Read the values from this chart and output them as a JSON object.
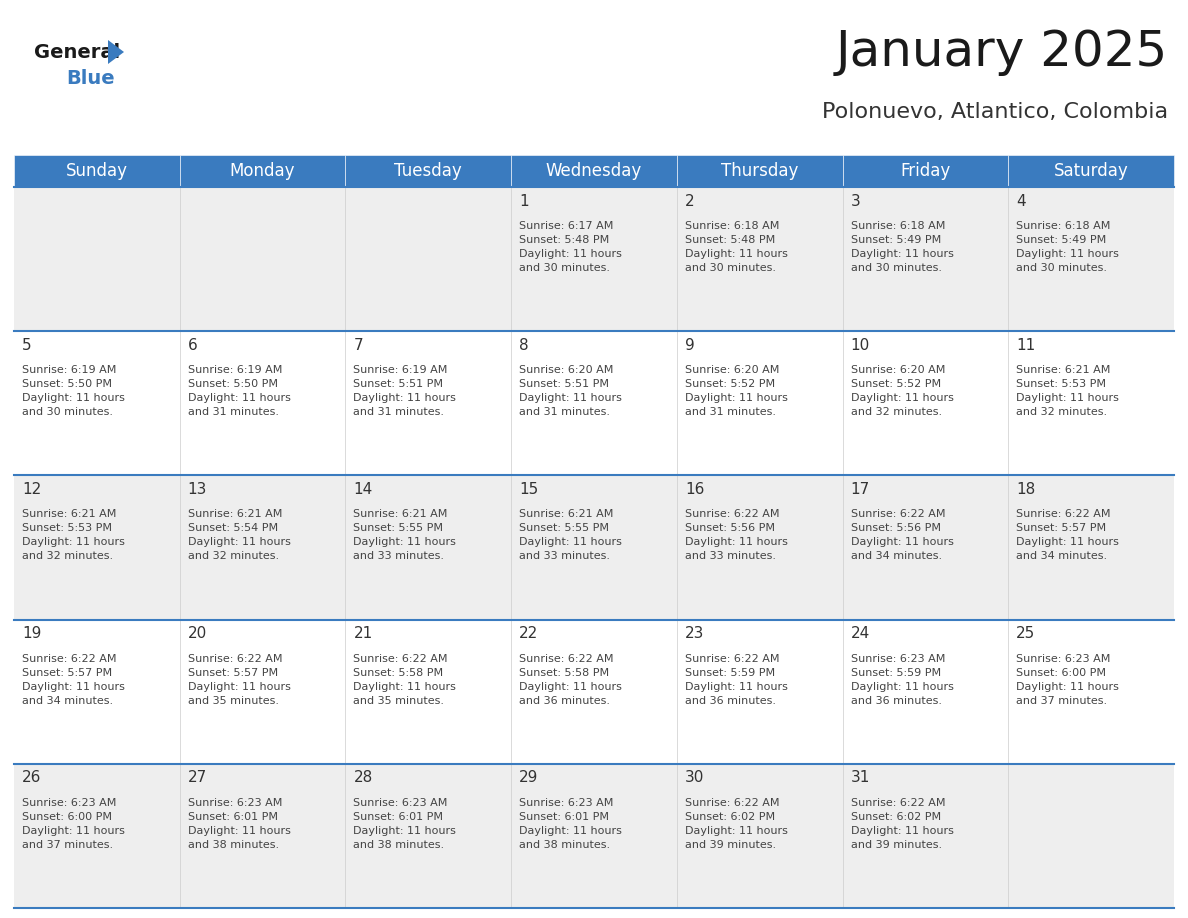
{
  "title": "January 2025",
  "subtitle": "Polonuevo, Atlantico, Colombia",
  "header_color": "#3a7bbf",
  "header_text_color": "#ffffff",
  "cell_bg_even": "#eeeeee",
  "cell_bg_odd": "#ffffff",
  "day_headers": [
    "Sunday",
    "Monday",
    "Tuesday",
    "Wednesday",
    "Thursday",
    "Friday",
    "Saturday"
  ],
  "text_color": "#444444",
  "day_number_color": "#333333",
  "line_color": "#3a7bbf",
  "background_color": "#ffffff",
  "logo_general_color": "#1a1a1a",
  "logo_blue_color": "#3a7bbf",
  "logo_triangle_color": "#3a7bbf",
  "title_fontsize": 36,
  "subtitle_fontsize": 16,
  "header_fontsize": 12,
  "day_num_fontsize": 11,
  "info_fontsize": 8,
  "calendar": [
    [
      {
        "day": null,
        "info": null
      },
      {
        "day": null,
        "info": null
      },
      {
        "day": null,
        "info": null
      },
      {
        "day": 1,
        "info": "Sunrise: 6:17 AM\nSunset: 5:48 PM\nDaylight: 11 hours\nand 30 minutes."
      },
      {
        "day": 2,
        "info": "Sunrise: 6:18 AM\nSunset: 5:48 PM\nDaylight: 11 hours\nand 30 minutes."
      },
      {
        "day": 3,
        "info": "Sunrise: 6:18 AM\nSunset: 5:49 PM\nDaylight: 11 hours\nand 30 minutes."
      },
      {
        "day": 4,
        "info": "Sunrise: 6:18 AM\nSunset: 5:49 PM\nDaylight: 11 hours\nand 30 minutes."
      }
    ],
    [
      {
        "day": 5,
        "info": "Sunrise: 6:19 AM\nSunset: 5:50 PM\nDaylight: 11 hours\nand 30 minutes."
      },
      {
        "day": 6,
        "info": "Sunrise: 6:19 AM\nSunset: 5:50 PM\nDaylight: 11 hours\nand 31 minutes."
      },
      {
        "day": 7,
        "info": "Sunrise: 6:19 AM\nSunset: 5:51 PM\nDaylight: 11 hours\nand 31 minutes."
      },
      {
        "day": 8,
        "info": "Sunrise: 6:20 AM\nSunset: 5:51 PM\nDaylight: 11 hours\nand 31 minutes."
      },
      {
        "day": 9,
        "info": "Sunrise: 6:20 AM\nSunset: 5:52 PM\nDaylight: 11 hours\nand 31 minutes."
      },
      {
        "day": 10,
        "info": "Sunrise: 6:20 AM\nSunset: 5:52 PM\nDaylight: 11 hours\nand 32 minutes."
      },
      {
        "day": 11,
        "info": "Sunrise: 6:21 AM\nSunset: 5:53 PM\nDaylight: 11 hours\nand 32 minutes."
      }
    ],
    [
      {
        "day": 12,
        "info": "Sunrise: 6:21 AM\nSunset: 5:53 PM\nDaylight: 11 hours\nand 32 minutes."
      },
      {
        "day": 13,
        "info": "Sunrise: 6:21 AM\nSunset: 5:54 PM\nDaylight: 11 hours\nand 32 minutes."
      },
      {
        "day": 14,
        "info": "Sunrise: 6:21 AM\nSunset: 5:55 PM\nDaylight: 11 hours\nand 33 minutes."
      },
      {
        "day": 15,
        "info": "Sunrise: 6:21 AM\nSunset: 5:55 PM\nDaylight: 11 hours\nand 33 minutes."
      },
      {
        "day": 16,
        "info": "Sunrise: 6:22 AM\nSunset: 5:56 PM\nDaylight: 11 hours\nand 33 minutes."
      },
      {
        "day": 17,
        "info": "Sunrise: 6:22 AM\nSunset: 5:56 PM\nDaylight: 11 hours\nand 34 minutes."
      },
      {
        "day": 18,
        "info": "Sunrise: 6:22 AM\nSunset: 5:57 PM\nDaylight: 11 hours\nand 34 minutes."
      }
    ],
    [
      {
        "day": 19,
        "info": "Sunrise: 6:22 AM\nSunset: 5:57 PM\nDaylight: 11 hours\nand 34 minutes."
      },
      {
        "day": 20,
        "info": "Sunrise: 6:22 AM\nSunset: 5:57 PM\nDaylight: 11 hours\nand 35 minutes."
      },
      {
        "day": 21,
        "info": "Sunrise: 6:22 AM\nSunset: 5:58 PM\nDaylight: 11 hours\nand 35 minutes."
      },
      {
        "day": 22,
        "info": "Sunrise: 6:22 AM\nSunset: 5:58 PM\nDaylight: 11 hours\nand 36 minutes."
      },
      {
        "day": 23,
        "info": "Sunrise: 6:22 AM\nSunset: 5:59 PM\nDaylight: 11 hours\nand 36 minutes."
      },
      {
        "day": 24,
        "info": "Sunrise: 6:23 AM\nSunset: 5:59 PM\nDaylight: 11 hours\nand 36 minutes."
      },
      {
        "day": 25,
        "info": "Sunrise: 6:23 AM\nSunset: 6:00 PM\nDaylight: 11 hours\nand 37 minutes."
      }
    ],
    [
      {
        "day": 26,
        "info": "Sunrise: 6:23 AM\nSunset: 6:00 PM\nDaylight: 11 hours\nand 37 minutes."
      },
      {
        "day": 27,
        "info": "Sunrise: 6:23 AM\nSunset: 6:01 PM\nDaylight: 11 hours\nand 38 minutes."
      },
      {
        "day": 28,
        "info": "Sunrise: 6:23 AM\nSunset: 6:01 PM\nDaylight: 11 hours\nand 38 minutes."
      },
      {
        "day": 29,
        "info": "Sunrise: 6:23 AM\nSunset: 6:01 PM\nDaylight: 11 hours\nand 38 minutes."
      },
      {
        "day": 30,
        "info": "Sunrise: 6:22 AM\nSunset: 6:02 PM\nDaylight: 11 hours\nand 39 minutes."
      },
      {
        "day": 31,
        "info": "Sunrise: 6:22 AM\nSunset: 6:02 PM\nDaylight: 11 hours\nand 39 minutes."
      },
      {
        "day": null,
        "info": null
      }
    ]
  ]
}
